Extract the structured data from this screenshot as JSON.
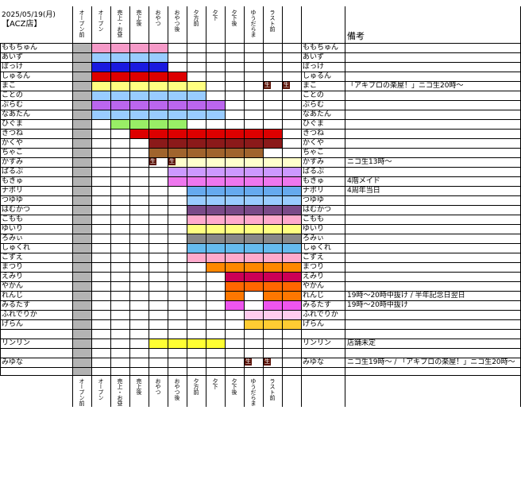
{
  "header": {
    "date": "2025/05/19(月)",
    "store": "【ACZ店】",
    "notes_title": "備考"
  },
  "columns": [
    "オープン前",
    "オープン",
    "売上・お昼",
    "売上後",
    "おやつ",
    "おやつ後",
    "夕方前",
    "夕下",
    "夕下後",
    "ゆうだらま",
    "ラスト前"
  ],
  "live_tag": "生",
  "rows": [
    {
      "name": "ももちゅん",
      "name_right": "ももちゅん",
      "note": "",
      "color": "#f59ac8",
      "start": 0,
      "end": 4,
      "tags": []
    },
    {
      "name": "あいず",
      "name_right": "あいず",
      "note": "",
      "color": "#99ccff",
      "start": 0,
      "end": 4,
      "tags": []
    },
    {
      "name": "ぼっけ",
      "name_right": "ぼっけ",
      "note": "",
      "color": "#1a1adf",
      "start": 0,
      "end": 4,
      "tags": []
    },
    {
      "name": "しゅるん",
      "name_right": "しゅるん",
      "note": "",
      "color": "#dd0000",
      "start": 0,
      "end": 5,
      "tags": []
    },
    {
      "name": "まこ",
      "name_right": "まこ",
      "note": "「アキプロの楽屋！」ニコ生20時～",
      "color": "#ffff80",
      "start": 0,
      "end": 6,
      "tags": [
        9,
        10
      ]
    },
    {
      "name": "ことの",
      "name_right": "ことの",
      "note": "",
      "color": "#99ccff",
      "start": 0,
      "end": 6,
      "tags": []
    },
    {
      "name": "ぷらむ",
      "name_right": "ぷらむ",
      "note": "",
      "color": "#bb66ee",
      "start": 0,
      "end": 7,
      "tags": []
    },
    {
      "name": "なあたん",
      "name_right": "なあたん",
      "note": "",
      "color": "#99ccff",
      "start": 0,
      "end": 7,
      "tags": []
    },
    {
      "name": "ひぐま",
      "name_right": "ひぐま",
      "note": "",
      "color": "#99ee66",
      "start": 1,
      "end": 5,
      "tags": []
    },
    {
      "name": "きつね",
      "name_right": "きつね",
      "note": "",
      "color": "#dd0000",
      "start": 2,
      "end": 10,
      "tags": []
    },
    {
      "name": "かくや",
      "name_right": "かくや",
      "note": "",
      "color": "#8b1a1a",
      "start": 3,
      "end": 10,
      "tags": []
    },
    {
      "name": "ちゃこ",
      "name_right": "ちゃこ",
      "note": "",
      "color": "#a0642d",
      "start": 3,
      "end": 9,
      "tags": []
    },
    {
      "name": "かすみ",
      "name_right": "かすみ",
      "note": "ニコ生13時～",
      "color": "#ffffcc",
      "start": 4,
      "end": 11,
      "tags": [
        3,
        4
      ]
    },
    {
      "name": "ぱるぷ",
      "name_right": "ぱるぷ",
      "note": "",
      "color": "#cc99ff",
      "start": 4,
      "end": 11,
      "tags": []
    },
    {
      "name": "もきゅ",
      "name_right": "もきゅ",
      "note": "4階メイド",
      "color": "#ee77ee",
      "start": 4,
      "end": 11,
      "tags": []
    },
    {
      "name": "ナポリ",
      "name_right": "ナポリ",
      "note": "4周年当日",
      "color": "#66aaee",
      "start": 5,
      "end": 11,
      "tags": []
    },
    {
      "name": "つゆゆ",
      "name_right": "つゆゆ",
      "note": "",
      "color": "#99ccff",
      "start": 5,
      "end": 11,
      "tags": []
    },
    {
      "name": "はむかつ",
      "name_right": "はむかつ",
      "note": "",
      "color": "#7a4a88",
      "start": 5,
      "end": 11,
      "tags": []
    },
    {
      "name": "こもも",
      "name_right": "こもも",
      "note": "",
      "color": "#ffaacc",
      "start": 5,
      "end": 11,
      "tags": []
    },
    {
      "name": "ゆいり",
      "name_right": "ゆいり",
      "note": "",
      "color": "#ffff80",
      "start": 5,
      "end": 11,
      "tags": []
    },
    {
      "name": "ろみぃ",
      "name_right": "ろみぃ",
      "note": "",
      "color": "#888888",
      "start": 5,
      "end": 11,
      "tags": []
    },
    {
      "name": "しゅくれ",
      "name_right": "しゅくれ",
      "note": "",
      "color": "#66bbee",
      "start": 5,
      "end": 11,
      "tags": []
    },
    {
      "name": "こずえ",
      "name_right": "こずえ",
      "note": "",
      "color": "#ffaacc",
      "start": 5,
      "end": 11,
      "tags": []
    },
    {
      "name": "まつり",
      "name_right": "まつり",
      "note": "",
      "color": "#ff8800",
      "start": 6,
      "end": 11,
      "tags": []
    },
    {
      "name": "えみり",
      "name_right": "えみり",
      "note": "",
      "color": "#cc0055",
      "start": 7,
      "end": 11,
      "tags": []
    },
    {
      "name": "やかん",
      "name_right": "やかん",
      "note": "",
      "color": "#ff6600",
      "start": 7,
      "end": 11,
      "tags": []
    },
    {
      "name": "れんじ",
      "name_right": "れんじ",
      "note": "19時～20時中抜け / 半年記念日翌日",
      "color": "#ff7700",
      "start": 7,
      "end": 11,
      "tags": [],
      "gap": [
        8
      ]
    },
    {
      "name": "みるたす",
      "name_right": "みるたす",
      "note": "19時～20時中抜け",
      "color": "#ee55ee",
      "start": 7,
      "end": 11,
      "tags": [],
      "gap": [
        8
      ]
    },
    {
      "name": "ふれでりか",
      "name_right": "ふれでりか",
      "note": "",
      "color": "#ffccee",
      "start": 8,
      "end": 11,
      "tags": []
    },
    {
      "name": "げらん",
      "name_right": "げらん",
      "note": "",
      "color": "#ffcc33",
      "start": 8,
      "end": 11,
      "tags": []
    },
    {
      "name": "",
      "name_right": "",
      "note": "",
      "color": "",
      "start": 0,
      "end": 0,
      "tags": []
    },
    {
      "name": "リンリン",
      "name_right": "リンリン",
      "note": "店舗未定",
      "color": "#ffff33",
      "start": 3,
      "end": 7,
      "tags": []
    },
    {
      "name": "",
      "name_right": "",
      "note": "",
      "color": "",
      "start": 0,
      "end": 0,
      "tags": []
    },
    {
      "name": "みゆな",
      "name_right": "みゆな",
      "note": "ニコ生19時～ / 「アキプロの楽屋！」ニコ生20時～",
      "color": "",
      "start": 0,
      "end": 0,
      "tags": [
        8,
        9
      ]
    }
  ]
}
